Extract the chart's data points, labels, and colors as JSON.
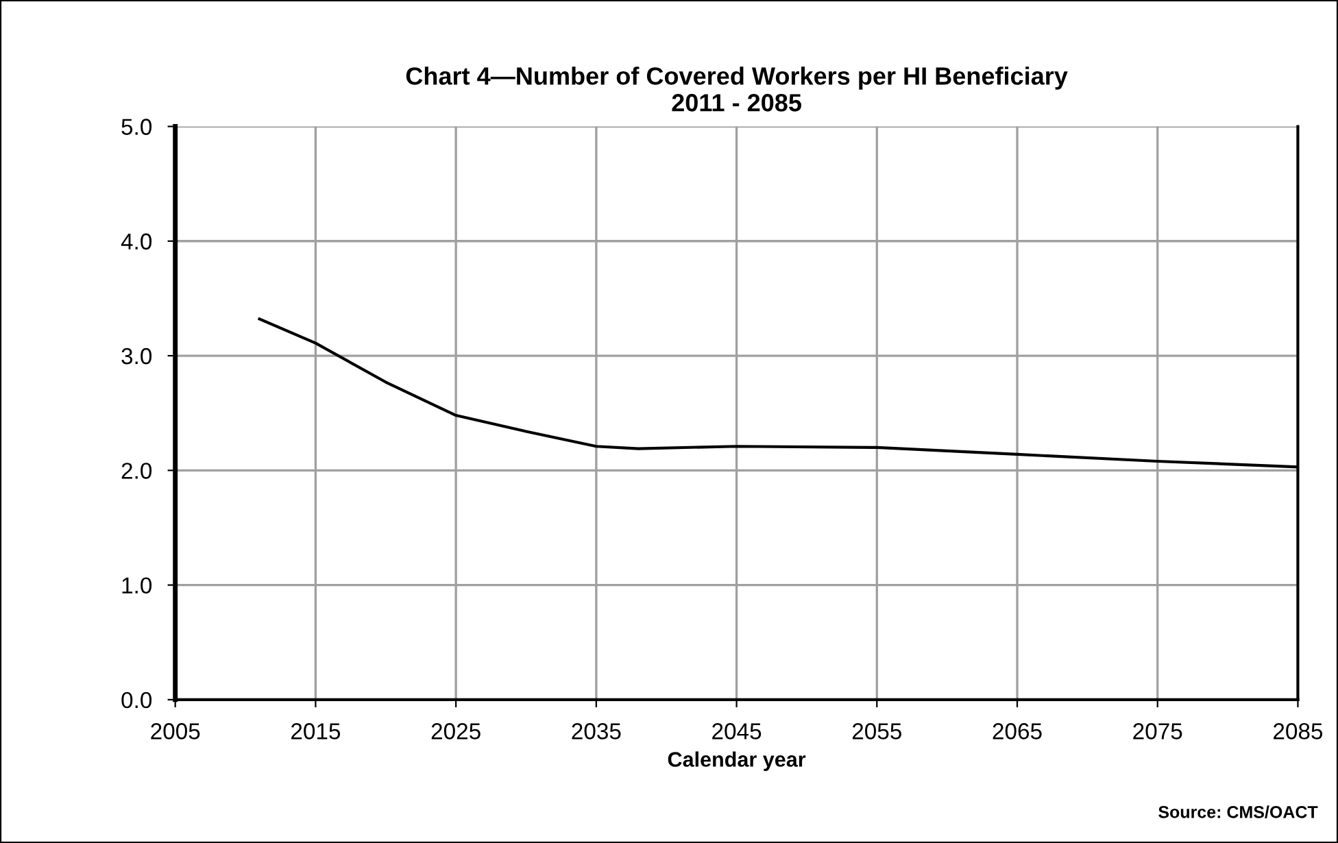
{
  "chart_data": {
    "type": "line",
    "title": "Chart 4—Number of Covered Workers per HI Beneficiary\n2011 - 2085",
    "xlabel": "Calendar year",
    "annotations": [
      "Source: CMS/OACT"
    ],
    "x": [
      2011,
      2015,
      2020,
      2025,
      2030,
      2035,
      2038,
      2045,
      2055,
      2065,
      2075,
      2085
    ],
    "series": [
      {
        "color": "#000000",
        "values": [
          3.32,
          3.11,
          2.77,
          2.48,
          2.34,
          2.21,
          2.19,
          2.21,
          2.2,
          2.14,
          2.08,
          2.03
        ]
      }
    ],
    "xlim": [
      2005,
      2085
    ],
    "xticks": [
      2005,
      2015,
      2025,
      2035,
      2045,
      2055,
      2065,
      2075,
      2085
    ],
    "ylim": [
      0,
      5
    ],
    "yticks": [
      {
        "value": 0,
        "label": "0.0"
      },
      {
        "value": 1,
        "label": "1.0"
      },
      {
        "value": 2,
        "label": "2.0"
      },
      {
        "value": 3,
        "label": "3.0"
      },
      {
        "value": 4,
        "label": "4.0"
      },
      {
        "value": 5,
        "label": "5.0"
      }
    ],
    "grid": true,
    "legend": false,
    "marker": "none",
    "line_style": "solid"
  }
}
